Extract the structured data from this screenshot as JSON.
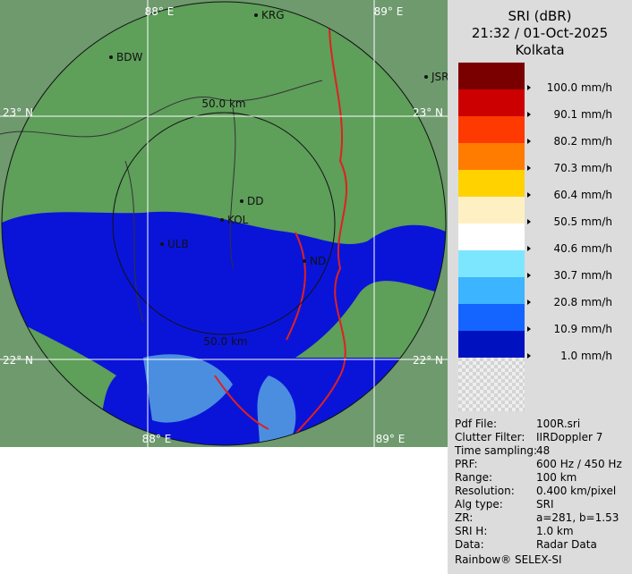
{
  "map": {
    "lon_labels": [
      "88° E",
      "89° E",
      "88° E",
      "89° E"
    ],
    "lat_labels": [
      "23° N",
      "23° N",
      "22° N",
      "22° N"
    ],
    "range_labels": [
      "50.0 km",
      "50.0 km"
    ],
    "cities": [
      "BDW",
      "KRG",
      "JSR",
      "DD",
      "KOL",
      "ULB",
      "ND"
    ]
  },
  "panel": {
    "title": [
      "SRI (dBR)",
      "21:32 / 01-Oct-2025",
      "Kolkata"
    ],
    "legend": [
      {
        "label": "100.0 mm/h",
        "color": "#7a0000"
      },
      {
        "label": "90.1 mm/h",
        "color": "#cc0000"
      },
      {
        "label": "80.2 mm/h",
        "color": "#ff3a00"
      },
      {
        "label": "70.3 mm/h",
        "color": "#ff7c00"
      },
      {
        "label": "60.4 mm/h",
        "color": "#ffd200"
      },
      {
        "label": "50.5 mm/h",
        "color": "#fff0c4"
      },
      {
        "label": "40.6 mm/h",
        "color": "#ffffff"
      },
      {
        "label": "30.7 mm/h",
        "color": "#7de6ff"
      },
      {
        "label": "20.8 mm/h",
        "color": "#3cb4ff"
      },
      {
        "label": "10.9 mm/h",
        "color": "#1464ff"
      },
      {
        "label": "1.0 mm/h",
        "color": "#0012c0"
      }
    ],
    "info": [
      [
        "Pdf File:",
        "100R.sri"
      ],
      [
        "Clutter Filter:",
        "IIRDoppler 7"
      ],
      [
        "Time sampling:",
        "48"
      ],
      [
        "PRF:",
        "600 Hz / 450 Hz"
      ],
      [
        "Range:",
        "100 km"
      ],
      [
        "Resolution:",
        "0.400 km/pixel"
      ],
      [
        "Alg type:",
        "SRI"
      ],
      [
        "ZR:",
        "a=281, b=1.53"
      ],
      [
        "SRI H:",
        "1.0 km"
      ],
      [
        "Data:",
        "Radar Data"
      ]
    ],
    "footer": "Rainbow® SELEX-SI"
  }
}
